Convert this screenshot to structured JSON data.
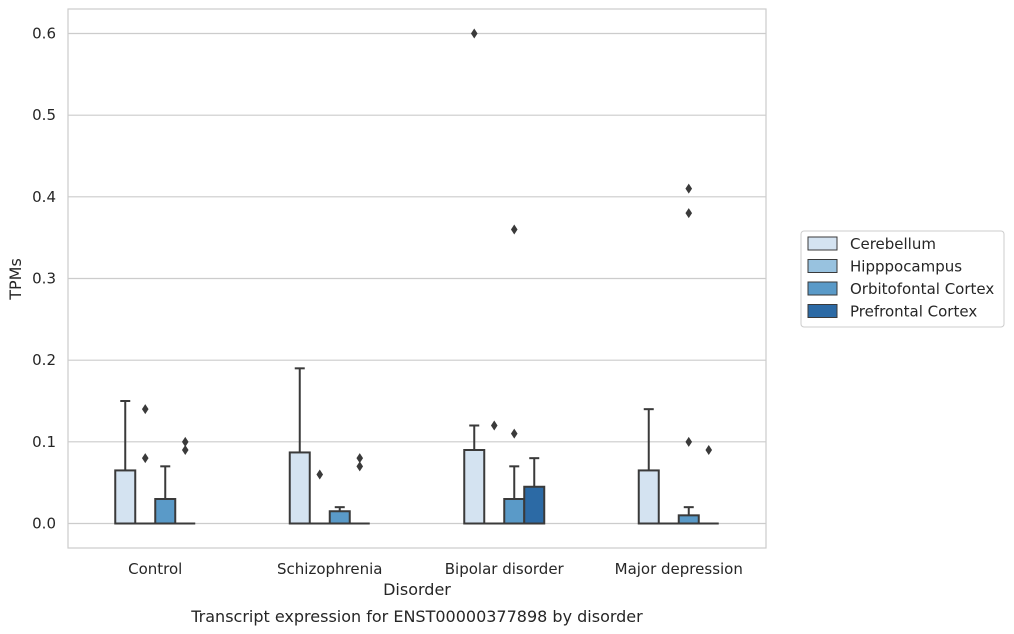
{
  "chart_data": {
    "type": "box",
    "title": "",
    "caption": "Transcript expression for ENST00000377898 by disorder",
    "xlabel": "Disorder",
    "ylabel": "TPMs",
    "ylim": [
      -0.03,
      0.63
    ],
    "yticks": [
      "0.0",
      "0.1",
      "0.2",
      "0.3",
      "0.4",
      "0.5",
      "0.6"
    ],
    "grid": "horizontal",
    "legend_position": "right",
    "categories": [
      "Control",
      "Schizophrenia",
      "Bipolar disorder",
      "Major depression"
    ],
    "series": [
      {
        "name": "Cerebellum",
        "color": "#d4e3f1",
        "boxes": [
          {
            "q1": 0.0,
            "median": 0.0,
            "q3": 0.065,
            "whisker_low": 0.0,
            "whisker_high": 0.15,
            "outliers": []
          },
          {
            "q1": 0.0,
            "median": 0.0,
            "q3": 0.087,
            "whisker_low": 0.0,
            "whisker_high": 0.19,
            "outliers": []
          },
          {
            "q1": 0.0,
            "median": 0.0,
            "q3": 0.09,
            "whisker_low": 0.0,
            "whisker_high": 0.12,
            "outliers": [
              0.6
            ]
          },
          {
            "q1": 0.0,
            "median": 0.0,
            "q3": 0.065,
            "whisker_low": 0.0,
            "whisker_high": 0.14,
            "outliers": []
          }
        ]
      },
      {
        "name": "Hipppocampus",
        "color": "#98c2df",
        "boxes": [
          {
            "q1": 0.0,
            "median": 0.0,
            "q3": 0.0,
            "whisker_low": 0.0,
            "whisker_high": 0.0,
            "outliers": [
              0.08,
              0.14
            ]
          },
          {
            "q1": 0.0,
            "median": 0.0,
            "q3": 0.0,
            "whisker_low": 0.0,
            "whisker_high": 0.0,
            "outliers": [
              0.06
            ]
          },
          {
            "q1": 0.0,
            "median": 0.0,
            "q3": 0.0,
            "whisker_low": 0.0,
            "whisker_high": 0.0,
            "outliers": [
              0.12
            ]
          },
          {
            "q1": 0.0,
            "median": 0.0,
            "q3": 0.0,
            "whisker_low": 0.0,
            "whisker_high": 0.0,
            "outliers": []
          }
        ]
      },
      {
        "name": "Orbitofontal Cortex",
        "color": "#5a9ac8",
        "boxes": [
          {
            "q1": 0.0,
            "median": 0.0,
            "q3": 0.03,
            "whisker_low": 0.0,
            "whisker_high": 0.07,
            "outliers": []
          },
          {
            "q1": 0.0,
            "median": 0.0,
            "q3": 0.015,
            "whisker_low": 0.0,
            "whisker_high": 0.02,
            "outliers": []
          },
          {
            "q1": 0.0,
            "median": 0.0,
            "q3": 0.03,
            "whisker_low": 0.0,
            "whisker_high": 0.07,
            "outliers": [
              0.11,
              0.36
            ]
          },
          {
            "q1": 0.0,
            "median": 0.0,
            "q3": 0.01,
            "whisker_low": 0.0,
            "whisker_high": 0.02,
            "outliers": [
              0.1,
              0.38,
              0.41
            ]
          }
        ]
      },
      {
        "name": "Prefrontal Cortex",
        "color": "#2c6aa5",
        "boxes": [
          {
            "q1": 0.0,
            "median": 0.0,
            "q3": 0.0,
            "whisker_low": 0.0,
            "whisker_high": 0.0,
            "outliers": [
              0.09,
              0.1
            ]
          },
          {
            "q1": 0.0,
            "median": 0.0,
            "q3": 0.0,
            "whisker_low": 0.0,
            "whisker_high": 0.0,
            "outliers": [
              0.07,
              0.08
            ]
          },
          {
            "q1": 0.0,
            "median": 0.0,
            "q3": 0.045,
            "whisker_low": 0.0,
            "whisker_high": 0.08,
            "outliers": []
          },
          {
            "q1": 0.0,
            "median": 0.0,
            "q3": 0.0,
            "whisker_low": 0.0,
            "whisker_high": 0.0,
            "outliers": [
              0.09
            ]
          }
        ]
      }
    ]
  }
}
